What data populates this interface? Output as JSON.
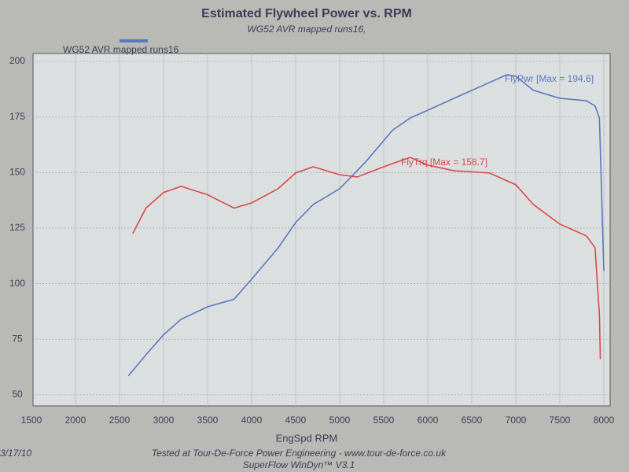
{
  "chart_data": {
    "type": "line",
    "title": "Estimated Flywheel Power vs. RPM",
    "subtitle": "WG52 AVR mapped runs16,",
    "legend_label": "WG52 AVR mapped runs16",
    "x_label": "EngSpd RPM",
    "footer": [
      "Tested at Tour-De-Force Power Engineering - www.tour-de-force.co.uk",
      "SuperFlow WinDyn™ V3.1"
    ],
    "date": "3/17/10",
    "annotations": [
      "FlyPwr [Max = 194.6]",
      "FlyTrq [Max = 158.7]"
    ],
    "xlim": [
      1500,
      8000
    ],
    "xticks": [
      1500,
      2000,
      2500,
      3000,
      3500,
      4000,
      4500,
      5000,
      5500,
      6000,
      6500,
      7000,
      7500,
      8000
    ],
    "ylim": [
      45,
      200
    ],
    "yticks": [
      50,
      75,
      100,
      125,
      150,
      175,
      200
    ],
    "grid": true,
    "series": [
      {
        "color": "#5a78c0",
        "x": [
          2600,
          2800,
          3000,
          3200,
          3500,
          3800,
          4000,
          4300,
          4500,
          4700,
          5000,
          5300,
          5600,
          5800,
          6000,
          6300,
          6600,
          6900,
          7000,
          7200,
          7500,
          7800,
          7900,
          7950,
          8000
        ],
        "values": [
          58.5,
          68,
          77,
          84,
          89.6,
          93,
          102,
          116,
          127.5,
          135.6,
          142.7,
          155,
          169,
          174.5,
          178,
          183.4,
          188.7,
          194,
          193.3,
          187,
          183.4,
          182.3,
          180,
          174.5,
          105.6
        ]
      },
      {
        "color": "#d9484c",
        "x": [
          2650,
          2800,
          3000,
          3200,
          3500,
          3800,
          4000,
          4300,
          4500,
          4700,
          5000,
          5200,
          5500,
          5800,
          6000,
          6300,
          6700,
          7000,
          7200,
          7500,
          7800,
          7900,
          7950,
          7960
        ],
        "values": [
          122.5,
          134,
          141,
          143.8,
          140,
          134,
          136.3,
          142.7,
          149.8,
          152.6,
          149,
          148,
          152.6,
          156.8,
          153.3,
          150.8,
          149.8,
          144.5,
          135.6,
          126.8,
          121.5,
          116.2,
          86,
          66
        ]
      }
    ]
  }
}
